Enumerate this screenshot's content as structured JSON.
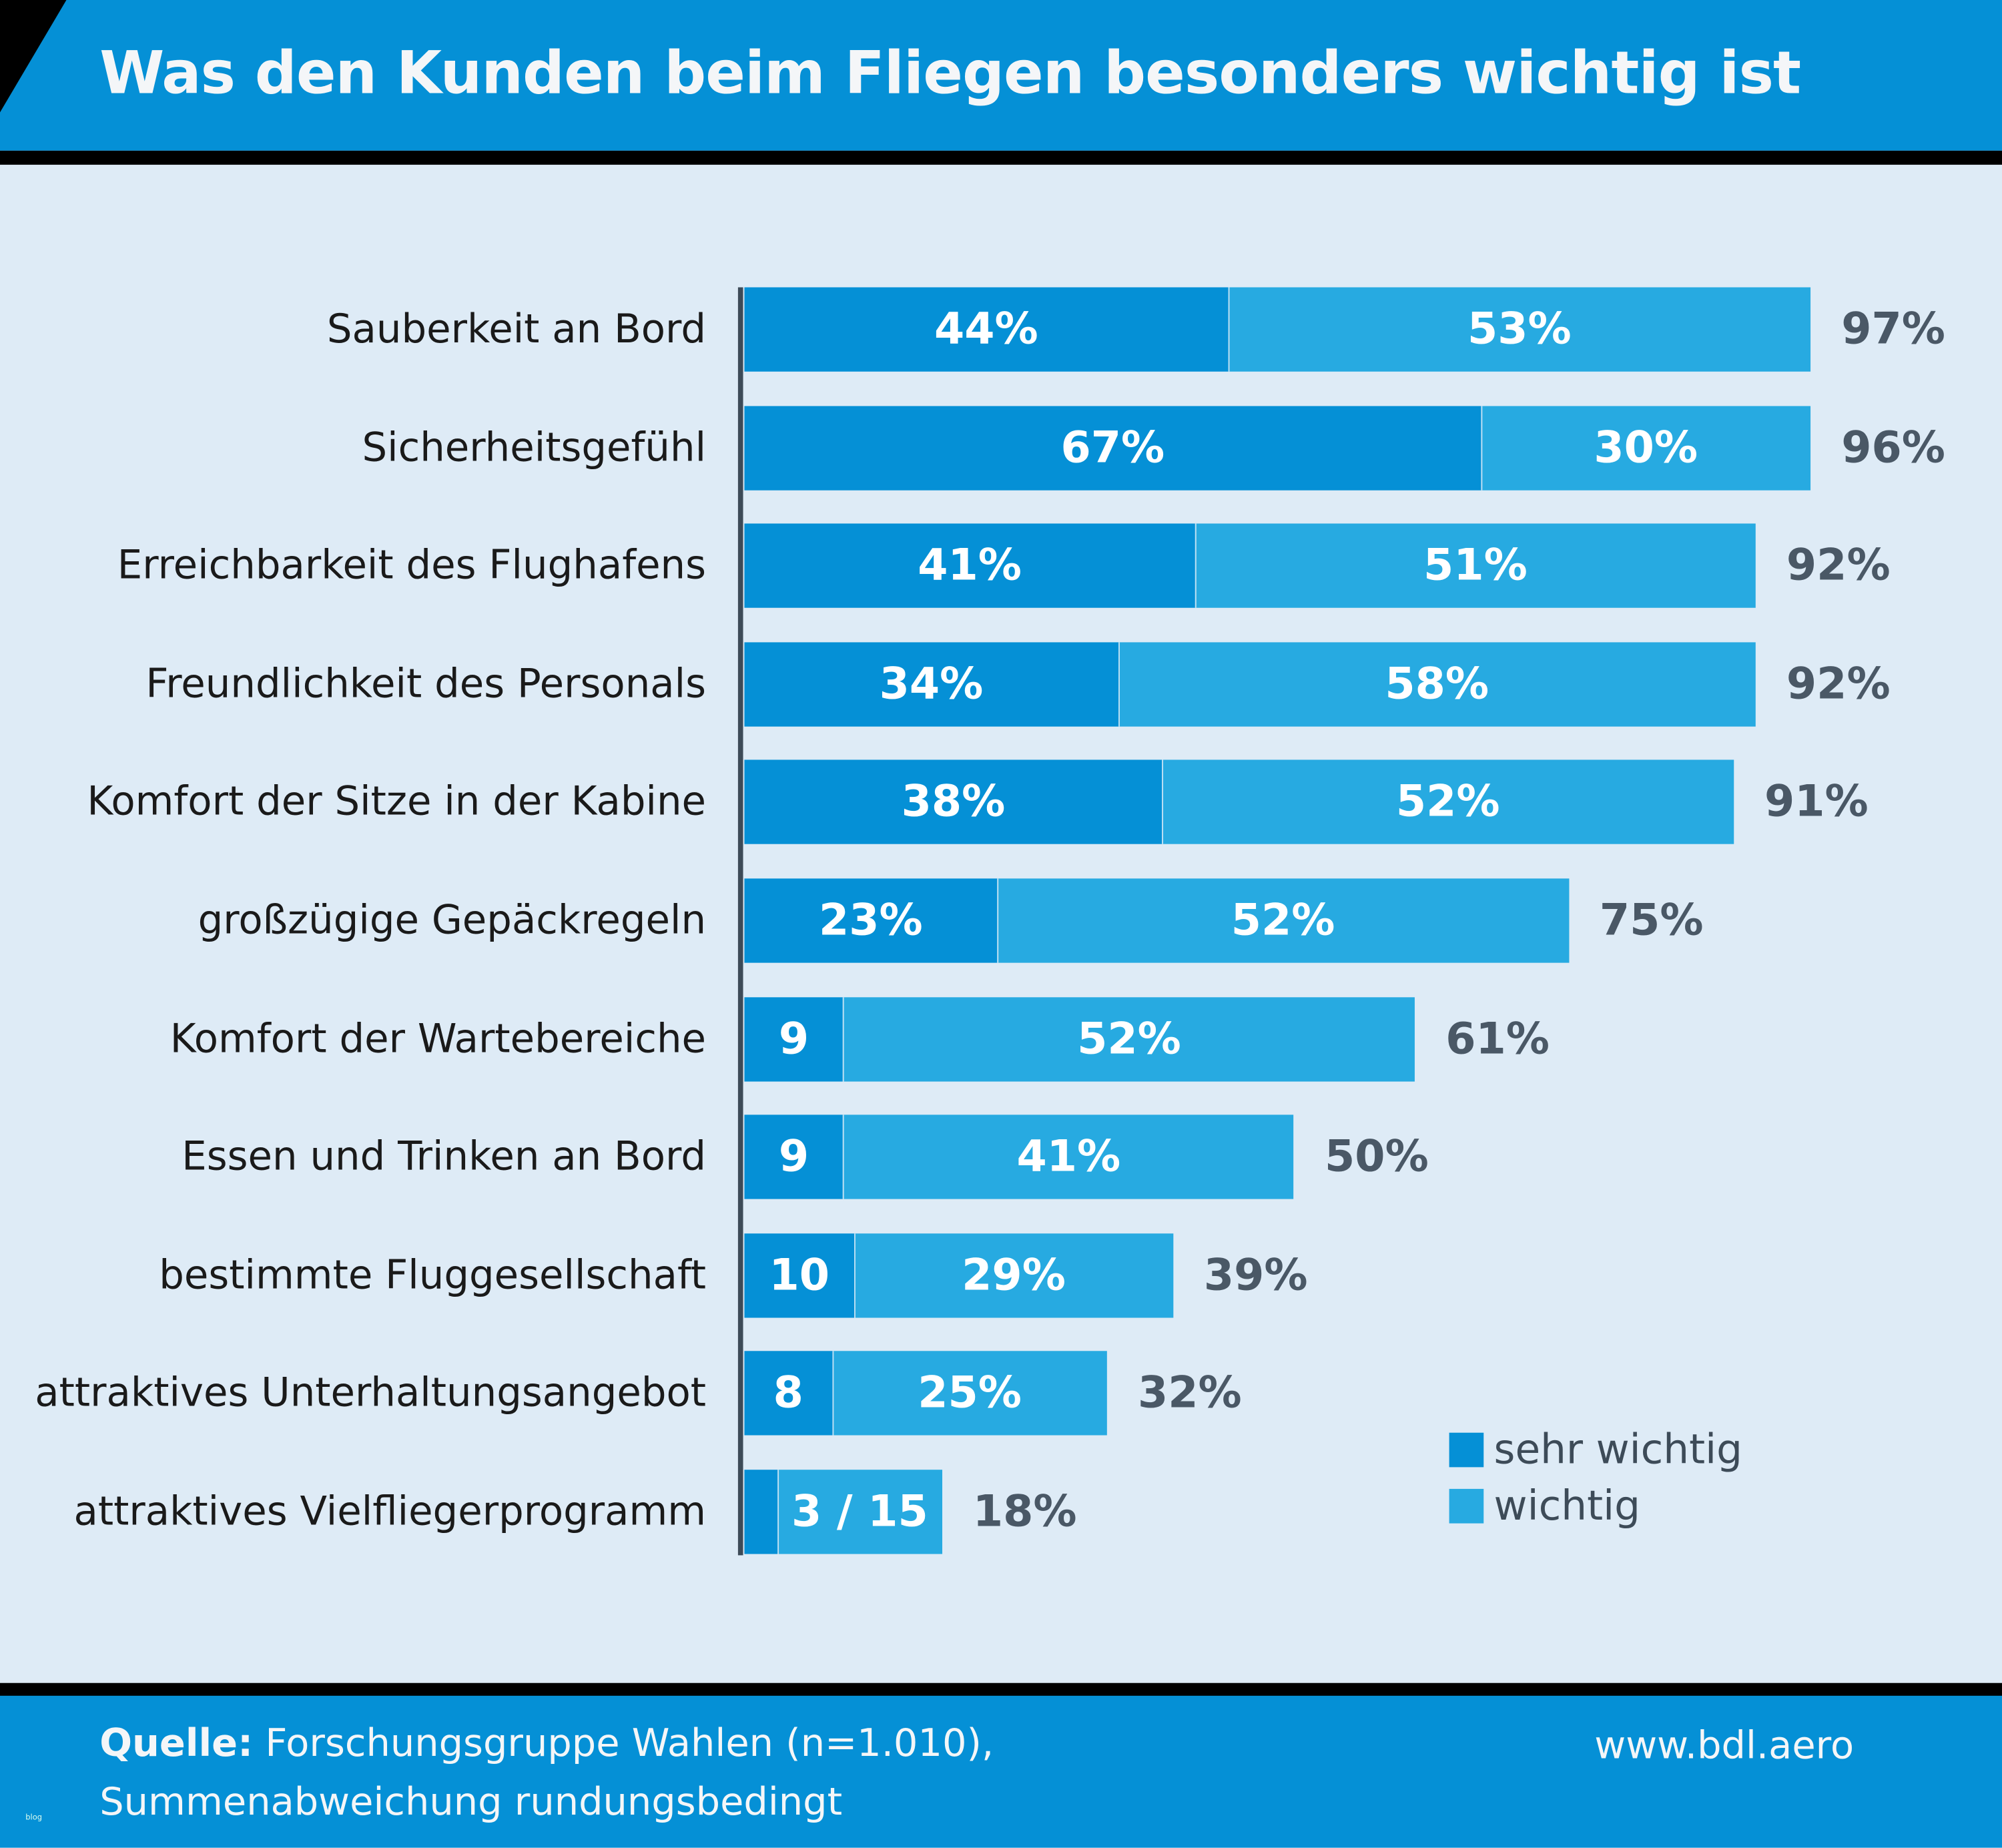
{
  "title": "Was den Kunden beim Fliegen besonders wichtig ist",
  "colors": {
    "header": "#0590d6",
    "sehr_wichtig": "#0590d6",
    "wichtig": "#27aae1",
    "background": "#deebf6",
    "total_text": "#4a5866"
  },
  "chart_data": {
    "type": "bar",
    "orientation": "horizontal",
    "stacked": true,
    "unit": "%",
    "categories": [
      "Sauberkeit an Bord",
      "Sicherheitsgefühl",
      "Erreichbarkeit des Flughafens",
      "Freundlichkeit des Personals",
      "Komfort der Sitze in der Kabine",
      "großzügige Gepäckregeln",
      "Komfort der Wartebereiche",
      "Essen und Trinken an Bord",
      "bestimmte Fluggesellschaft",
      "attraktives Unterhaltungsangebot",
      "attraktives Vielfliegerprogramm"
    ],
    "series": [
      {
        "name": "sehr wichtig",
        "values": [
          44,
          67,
          41,
          34,
          38,
          23,
          9,
          9,
          10,
          8,
          3
        ],
        "labels": [
          "44%",
          "67%",
          "41%",
          "34%",
          "38%",
          "23%",
          "9",
          "9",
          "10",
          "8",
          ""
        ]
      },
      {
        "name": "wichtig",
        "values": [
          53,
          30,
          51,
          58,
          52,
          52,
          52,
          41,
          29,
          25,
          15
        ],
        "labels": [
          "53%",
          "30%",
          "51%",
          "58%",
          "52%",
          "52%",
          "52%",
          "41%",
          "29%",
          "25%",
          "3 / 15"
        ]
      }
    ],
    "totals": [
      "97%",
      "96%",
      "92%",
      "92%",
      "91%",
      "75%",
      "61%",
      "50%",
      "39%",
      "32%",
      "18%"
    ],
    "total_values": [
      97,
      96,
      92,
      92,
      91,
      75,
      61,
      50,
      39,
      32,
      18
    ],
    "legend": {
      "position": "bottom-right",
      "items": [
        "sehr wichtig",
        "wichtig"
      ]
    },
    "grid": false
  },
  "footer": {
    "source_label": "Quelle:",
    "source_text": " Forschungsgruppe Wahlen (n=1.010),",
    "note": "Summenabweichung rundungsbedingt",
    "url": "www.bdl.aero",
    "watermark": "blog"
  }
}
